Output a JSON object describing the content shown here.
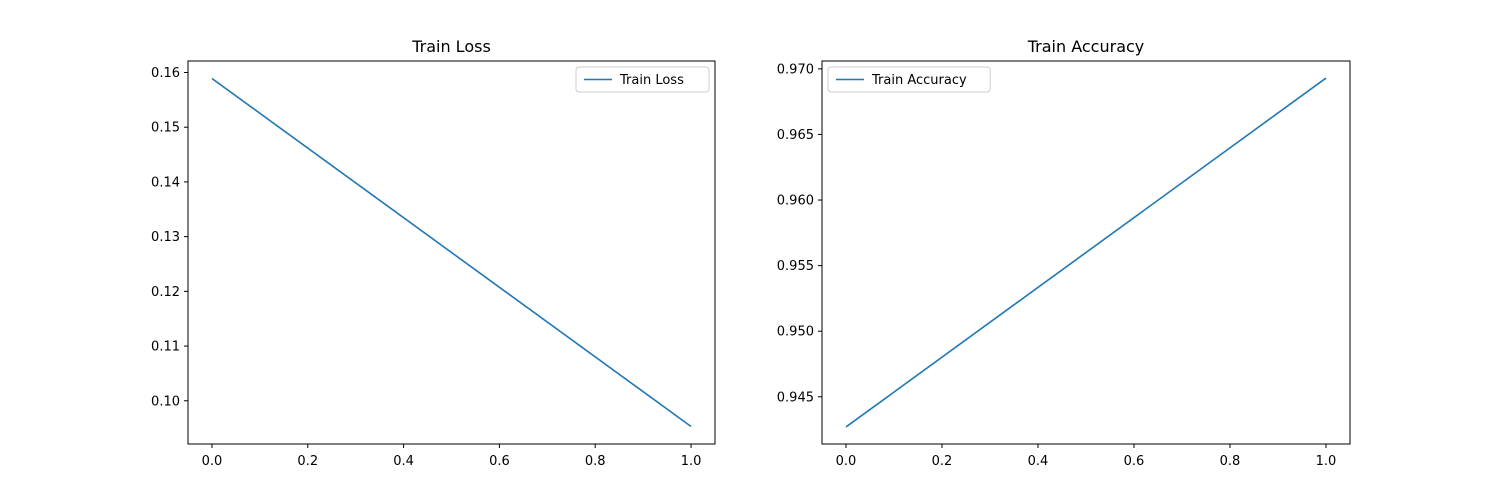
{
  "chart_data": [
    {
      "type": "line",
      "title": "Train Loss",
      "xlabel": "",
      "ylabel": "",
      "x": [
        0.0,
        1.0
      ],
      "series": [
        {
          "name": "Train Loss",
          "values": [
            0.1589,
            0.0953
          ],
          "color": "#1f77b4"
        }
      ],
      "xlim": [
        -0.05,
        1.05
      ],
      "ylim": [
        0.0921,
        0.1621
      ],
      "xticks": [
        0.0,
        0.2,
        0.4,
        0.6,
        0.8,
        1.0
      ],
      "xtick_labels": [
        "0.0",
        "0.2",
        "0.4",
        "0.6",
        "0.8",
        "1.0"
      ],
      "yticks": [
        0.1,
        0.11,
        0.12,
        0.13,
        0.14,
        0.15,
        0.16
      ],
      "ytick_labels": [
        "0.10",
        "0.11",
        "0.12",
        "0.13",
        "0.14",
        "0.15",
        "0.16"
      ],
      "grid": false,
      "legend_position": "top-right"
    },
    {
      "type": "line",
      "title": "Train Accuracy",
      "xlabel": "",
      "ylabel": "",
      "x": [
        0.0,
        1.0
      ],
      "series": [
        {
          "name": "Train Accuracy",
          "values": [
            0.9427,
            0.9693
          ],
          "color": "#1f77b4"
        }
      ],
      "xlim": [
        -0.05,
        1.05
      ],
      "ylim": [
        0.9414,
        0.9706
      ],
      "xticks": [
        0.0,
        0.2,
        0.4,
        0.6,
        0.8,
        1.0
      ],
      "xtick_labels": [
        "0.0",
        "0.2",
        "0.4",
        "0.6",
        "0.8",
        "1.0"
      ],
      "yticks": [
        0.945,
        0.95,
        0.955,
        0.96,
        0.965,
        0.97
      ],
      "ytick_labels": [
        "0.945",
        "0.950",
        "0.955",
        "0.960",
        "0.965",
        "0.970"
      ],
      "grid": false,
      "legend_position": "top-left"
    }
  ]
}
